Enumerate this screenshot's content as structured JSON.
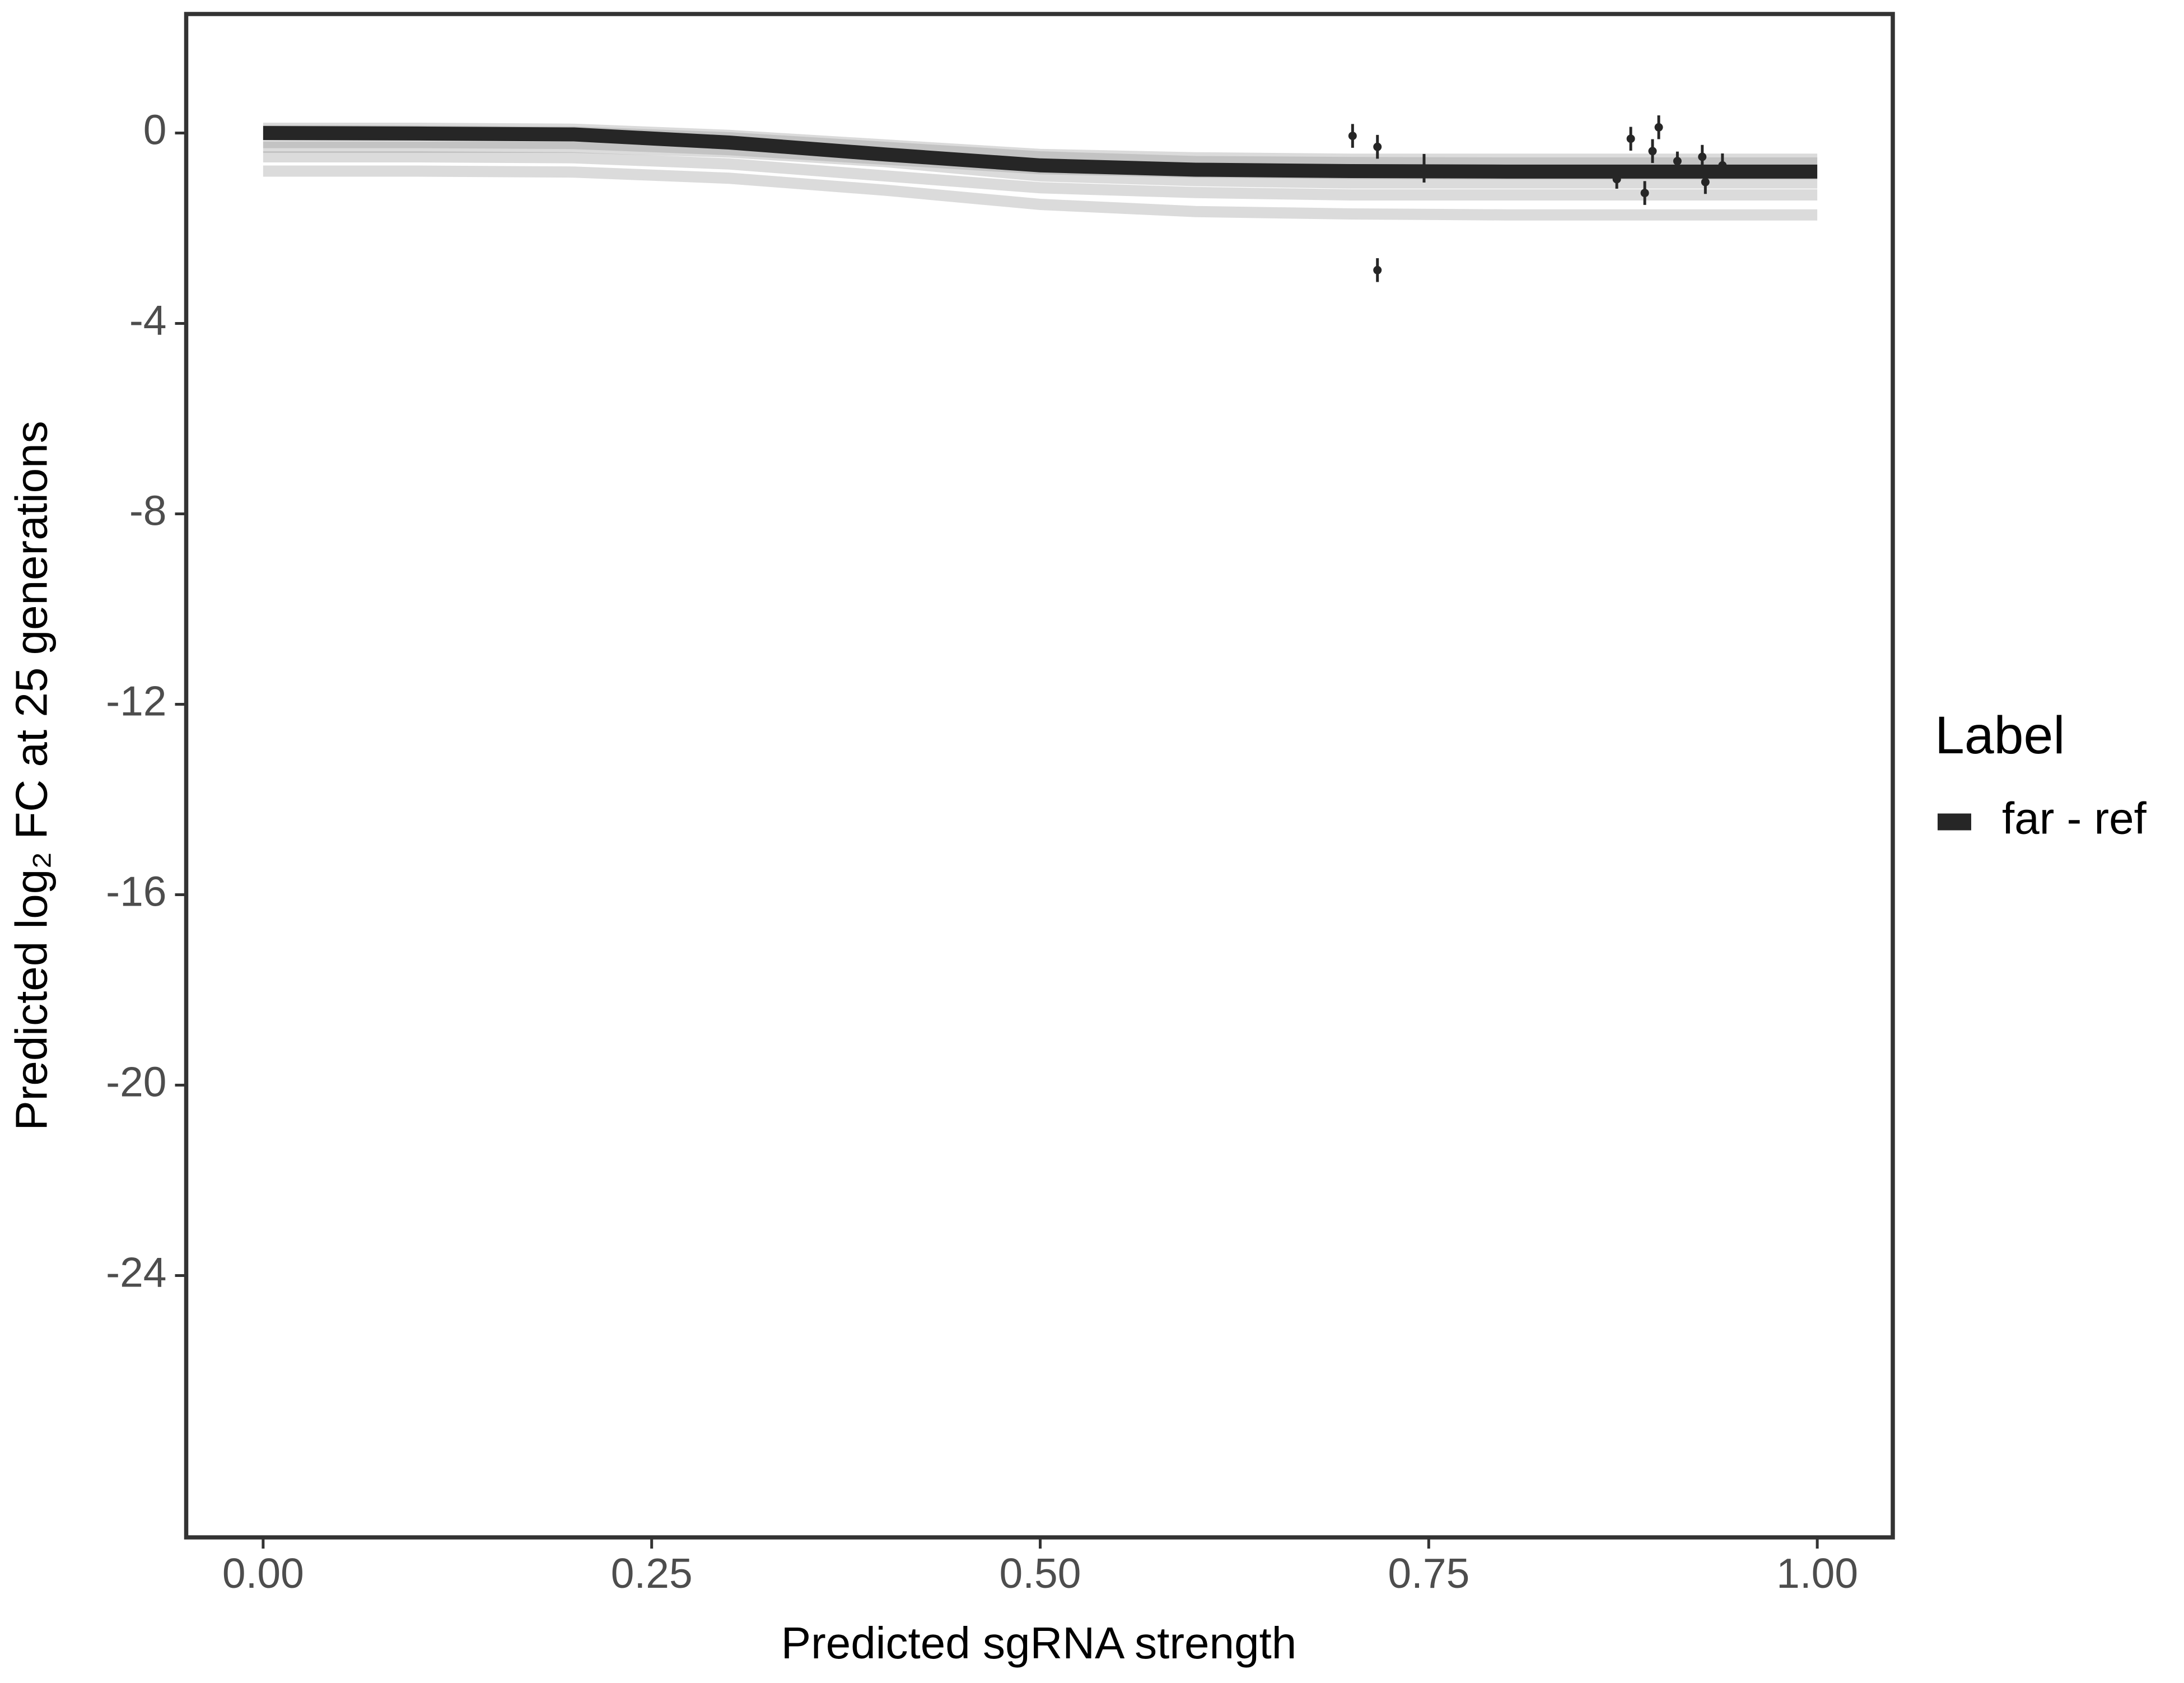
{
  "chart_data": {
    "type": "line",
    "xlabel": "Predicted sgRNA strength",
    "ylabel": "Predicted  log₂ FC at 25 generations",
    "legend_title": "Label",
    "x": [
      0,
      0.1,
      0.2,
      0.3,
      0.4,
      0.5,
      0.6,
      0.7,
      0.8,
      0.9,
      1.0
    ],
    "series": [
      {
        "name": "far - ref",
        "color": "#262626",
        "values": [
          0,
          -0.01,
          -0.03,
          -0.2,
          -0.45,
          -0.68,
          -0.77,
          -0.8,
          -0.81,
          -0.81,
          -0.81
        ]
      }
    ],
    "draws": {
      "color": "#999999",
      "values": [
        [
          -0.2,
          -0.2,
          -0.22,
          -0.35,
          -0.55,
          -0.75,
          -0.82,
          -0.85,
          -0.86,
          -0.86,
          -0.86
        ],
        [
          0.1,
          0.1,
          0.08,
          -0.05,
          -0.25,
          -0.45,
          -0.52,
          -0.55,
          -0.55,
          -0.55,
          -0.55
        ],
        [
          -0.5,
          -0.5,
          -0.52,
          -0.65,
          -0.9,
          -1.15,
          -1.25,
          -1.3,
          -1.3,
          -1.3,
          -1.3
        ],
        [
          0.05,
          0.04,
          0.02,
          -0.1,
          -0.3,
          -0.5,
          -0.6,
          -0.62,
          -0.63,
          -0.63,
          -0.63
        ],
        [
          -0.8,
          -0.8,
          -0.82,
          -0.95,
          -1.2,
          -1.5,
          -1.65,
          -1.7,
          -1.72,
          -1.72,
          -1.72
        ],
        [
          -0.3,
          -0.3,
          -0.3,
          -0.4,
          -0.6,
          -0.9,
          -1.0,
          -1.05,
          -1.05,
          -1.05,
          -1.05
        ]
      ]
    },
    "points": {
      "color": "#262626",
      "x": [
        0.701,
        0.717,
        0.717,
        0.747,
        0.871,
        0.88,
        0.889,
        0.894,
        0.898,
        0.91,
        0.926,
        0.928,
        0.939
      ],
      "y": [
        -0.06,
        -0.29,
        -2.88,
        -0.74,
        -0.97,
        -0.12,
        -1.26,
        -0.38,
        0.12,
        -0.59,
        -0.5,
        -1.03,
        -0.68
      ],
      "err": [
        0.25,
        0.25,
        0.25,
        0.3,
        0.2,
        0.25,
        0.25,
        0.25,
        0.25,
        0.2,
        0.25,
        0.25,
        0.25
      ]
    },
    "xlim": [
      -0.0495,
      1.0486
    ],
    "ylim": [
      -29.5,
      2.5
    ],
    "xticks": [
      {
        "value": 0,
        "label": "0.00"
      },
      {
        "value": 0.25,
        "label": "0.25"
      },
      {
        "value": 0.5,
        "label": "0.50"
      },
      {
        "value": 0.75,
        "label": "0.75"
      },
      {
        "value": 1,
        "label": "1.00"
      }
    ],
    "yticks": [
      0,
      -4,
      -8,
      -12,
      -16,
      -20,
      -24
    ]
  }
}
